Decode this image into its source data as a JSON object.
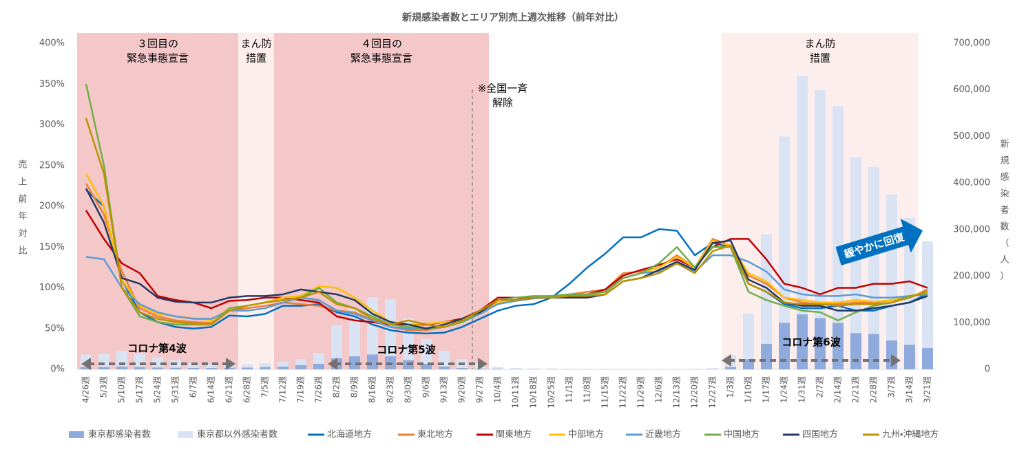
{
  "chart_data": {
    "type": "combo",
    "title": "新規感染者数とエリア別売上週次推移（前年対比）",
    "y_label": [
      "売",
      "上",
      "前",
      "年",
      "対",
      "比"
    ],
    "y2_label": [
      "新",
      "規",
      "感",
      "染",
      "者",
      "数",
      "（",
      "人",
      "）"
    ],
    "categories": [
      "4/26週",
      "5/3週",
      "5/10週",
      "5/17週",
      "5/24週",
      "5/31週",
      "6/7週",
      "6/14週",
      "6/21週",
      "6/28週",
      "7/5週",
      "7/12週",
      "7/19週",
      "7/26週",
      "8/2週",
      "8/9週",
      "8/16週",
      "8/23週",
      "8/30週",
      "9/6週",
      "9/13週",
      "9/20週",
      "9/27週",
      "10/4週",
      "10/11週",
      "10/18週",
      "10/25週",
      "11/1週",
      "11/8週",
      "11/15週",
      "11/22週",
      "11/29週",
      "12/6週",
      "12/13週",
      "12/20週",
      "12/27週",
      "1/3週",
      "1/10週",
      "1/17週",
      "1/24週",
      "1/31週",
      "2/7週",
      "2/14週",
      "2/21週",
      "2/28週",
      "3/7週",
      "3/14週",
      "3/21週"
    ],
    "ylim": [
      0,
      400
    ],
    "yticks": [
      {
        "value": 0,
        "label": "0%"
      },
      {
        "value": 50,
        "label": "50%"
      },
      {
        "value": 100,
        "label": "100%"
      },
      {
        "value": 150,
        "label": "150%"
      },
      {
        "value": 200,
        "label": "200%"
      },
      {
        "value": 250,
        "label": "250%"
      },
      {
        "value": 300,
        "label": "300%"
      },
      {
        "value": 350,
        "label": "350%"
      },
      {
        "value": 400,
        "label": "400%"
      }
    ],
    "y2lim": [
      0,
      700000
    ],
    "y2ticks": [
      0,
      {
        "value": 100000,
        "label": "100,000"
      },
      {
        "value": 200000,
        "label": "200,000"
      },
      {
        "value": 300000,
        "label": "300,000"
      },
      {
        "value": 400000,
        "label": "400,000"
      },
      {
        "value": 500000,
        "label": "500,000"
      },
      {
        "value": 600000,
        "label": "600,000"
      },
      {
        "value": 700000,
        "label": "700,000"
      }
    ],
    "grid": false,
    "stacked": true,
    "series": [
      {
        "name": "東京都感染者数",
        "type": "bar",
        "axis": "y2",
        "color": "#8faadc",
        "values": [
          5000,
          5000,
          6000,
          5000,
          4000,
          3500,
          3000,
          3000,
          3500,
          4000,
          5000,
          6000,
          9000,
          12000,
          24000,
          28000,
          32000,
          28000,
          20000,
          12000,
          6000,
          3000,
          1500,
          800,
          400,
          300,
          300,
          300,
          300,
          300,
          300,
          300,
          300,
          300,
          300,
          400,
          5000,
          22000,
          55000,
          100000,
          118000,
          110000,
          100000,
          78000,
          76000,
          62000,
          53000,
          46000
        ]
      },
      {
        "name": "東京都以外感染者数",
        "type": "bar",
        "axis": "y2",
        "color": "#dae3f3",
        "values": [
          27000,
          28000,
          34000,
          30000,
          22000,
          16500,
          11000,
          8000,
          6500,
          7000,
          8000,
          10000,
          13000,
          23000,
          71000,
          102000,
          123000,
          122000,
          90000,
          53000,
          34000,
          19000,
          9500,
          4200,
          2600,
          1700,
          1700,
          1200,
          900,
          900,
          700,
          700,
          700,
          700,
          1200,
          2100,
          25000,
          98000,
          235000,
          400000,
          512000,
          490000,
          465000,
          377000,
          359000,
          313000,
          272000,
          229000
        ]
      },
      {
        "name": "北海道地方",
        "type": "line",
        "color": "#0070c0",
        "values": [
          220,
          200,
          110,
          70,
          58,
          52,
          50,
          52,
          66,
          65,
          68,
          78,
          78,
          80,
          70,
          65,
          55,
          48,
          45,
          44,
          45,
          52,
          62,
          72,
          78,
          80,
          88,
          105,
          125,
          142,
          162,
          162,
          172,
          170,
          140,
          155,
          150,
          105,
          95,
          80,
          75,
          75,
          78,
          72,
          72,
          78,
          82,
          93
        ]
      },
      {
        "name": "東北地方",
        "type": "line",
        "color": "#ed7d31",
        "values": [
          228,
          190,
          120,
          75,
          65,
          60,
          58,
          57,
          72,
          75,
          78,
          82,
          80,
          78,
          72,
          70,
          60,
          52,
          48,
          48,
          52,
          58,
          68,
          82,
          85,
          87,
          90,
          92,
          95,
          98,
          118,
          120,
          125,
          140,
          125,
          160,
          152,
          115,
          105,
          88,
          82,
          80,
          80,
          82,
          82,
          85,
          88,
          98
        ]
      },
      {
        "name": "関東地方",
        "type": "line",
        "color": "#c00000",
        "values": [
          195,
          160,
          130,
          118,
          90,
          85,
          82,
          75,
          84,
          85,
          88,
          88,
          85,
          82,
          65,
          60,
          58,
          55,
          55,
          55,
          58,
          62,
          72,
          88,
          88,
          88,
          90,
          90,
          92,
          98,
          115,
          122,
          128,
          135,
          125,
          150,
          160,
          160,
          135,
          105,
          100,
          92,
          100,
          100,
          105,
          105,
          108,
          100
        ]
      },
      {
        "name": "中部地方",
        "type": "line",
        "color": "#ffc000",
        "values": [
          240,
          200,
          110,
          78,
          68,
          65,
          63,
          60,
          75,
          78,
          82,
          88,
          90,
          102,
          100,
          88,
          72,
          58,
          55,
          56,
          58,
          60,
          70,
          82,
          85,
          88,
          88,
          92,
          92,
          95,
          112,
          118,
          125,
          138,
          125,
          158,
          152,
          118,
          108,
          88,
          85,
          82,
          82,
          85,
          83,
          85,
          90,
          95
        ]
      },
      {
        "name": "近畿地方",
        "type": "line",
        "color": "#5b9bd5",
        "values": [
          138,
          135,
          100,
          80,
          70,
          65,
          62,
          62,
          72,
          72,
          75,
          82,
          88,
          85,
          72,
          68,
          60,
          52,
          50,
          50,
          52,
          58,
          68,
          80,
          84,
          87,
          88,
          90,
          92,
          95,
          112,
          118,
          120,
          130,
          120,
          140,
          140,
          132,
          120,
          98,
          92,
          90,
          90,
          92,
          88,
          88,
          90,
          92
        ]
      },
      {
        "name": "中国地方",
        "type": "line",
        "color": "#70ad47",
        "values": [
          350,
          250,
          100,
          65,
          58,
          55,
          55,
          55,
          75,
          78,
          82,
          85,
          88,
          100,
          82,
          75,
          65,
          55,
          52,
          50,
          52,
          58,
          70,
          85,
          88,
          90,
          90,
          92,
          92,
          95,
          112,
          118,
          130,
          150,
          125,
          150,
          150,
          95,
          85,
          78,
          72,
          70,
          60,
          70,
          78,
          82,
          90,
          93
        ]
      },
      {
        "name": "四国地方",
        "type": "line",
        "color": "#203864",
        "values": [
          222,
          180,
          112,
          105,
          88,
          83,
          82,
          82,
          88,
          90,
          90,
          92,
          98,
          95,
          92,
          85,
          68,
          58,
          55,
          50,
          55,
          62,
          70,
          85,
          85,
          88,
          88,
          88,
          88,
          92,
          108,
          112,
          122,
          132,
          122,
          155,
          158,
          110,
          100,
          82,
          78,
          78,
          72,
          72,
          75,
          78,
          82,
          90
        ]
      },
      {
        "name": "九州・沖縄地方",
        "type": "line",
        "color": "#bf9000",
        "values": [
          308,
          240,
          100,
          70,
          62,
          58,
          56,
          55,
          72,
          78,
          82,
          85,
          88,
          95,
          80,
          75,
          62,
          55,
          60,
          55,
          52,
          60,
          72,
          85,
          85,
          88,
          88,
          90,
          90,
          92,
          108,
          112,
          118,
          130,
          118,
          145,
          152,
          105,
          95,
          82,
          80,
          80,
          78,
          80,
          80,
          82,
          88,
          96
        ]
      }
    ],
    "legend": "bottom",
    "annotations": {
      "emergency3": [
        "３回目の",
        "緊急事態宣言"
      ],
      "manbo1": [
        "まん防",
        "措置"
      ],
      "emergency4": [
        "４回目の",
        "緊急事態宣言"
      ],
      "lift": [
        "※全国一斉",
        "解除"
      ],
      "manbo2": [
        "まん防",
        "措置"
      ],
      "wave4": "コロナ第4波",
      "wave5": "コロナ第5波",
      "wave6": "コロナ第6波",
      "recovery": "緩やかに回復"
    }
  }
}
